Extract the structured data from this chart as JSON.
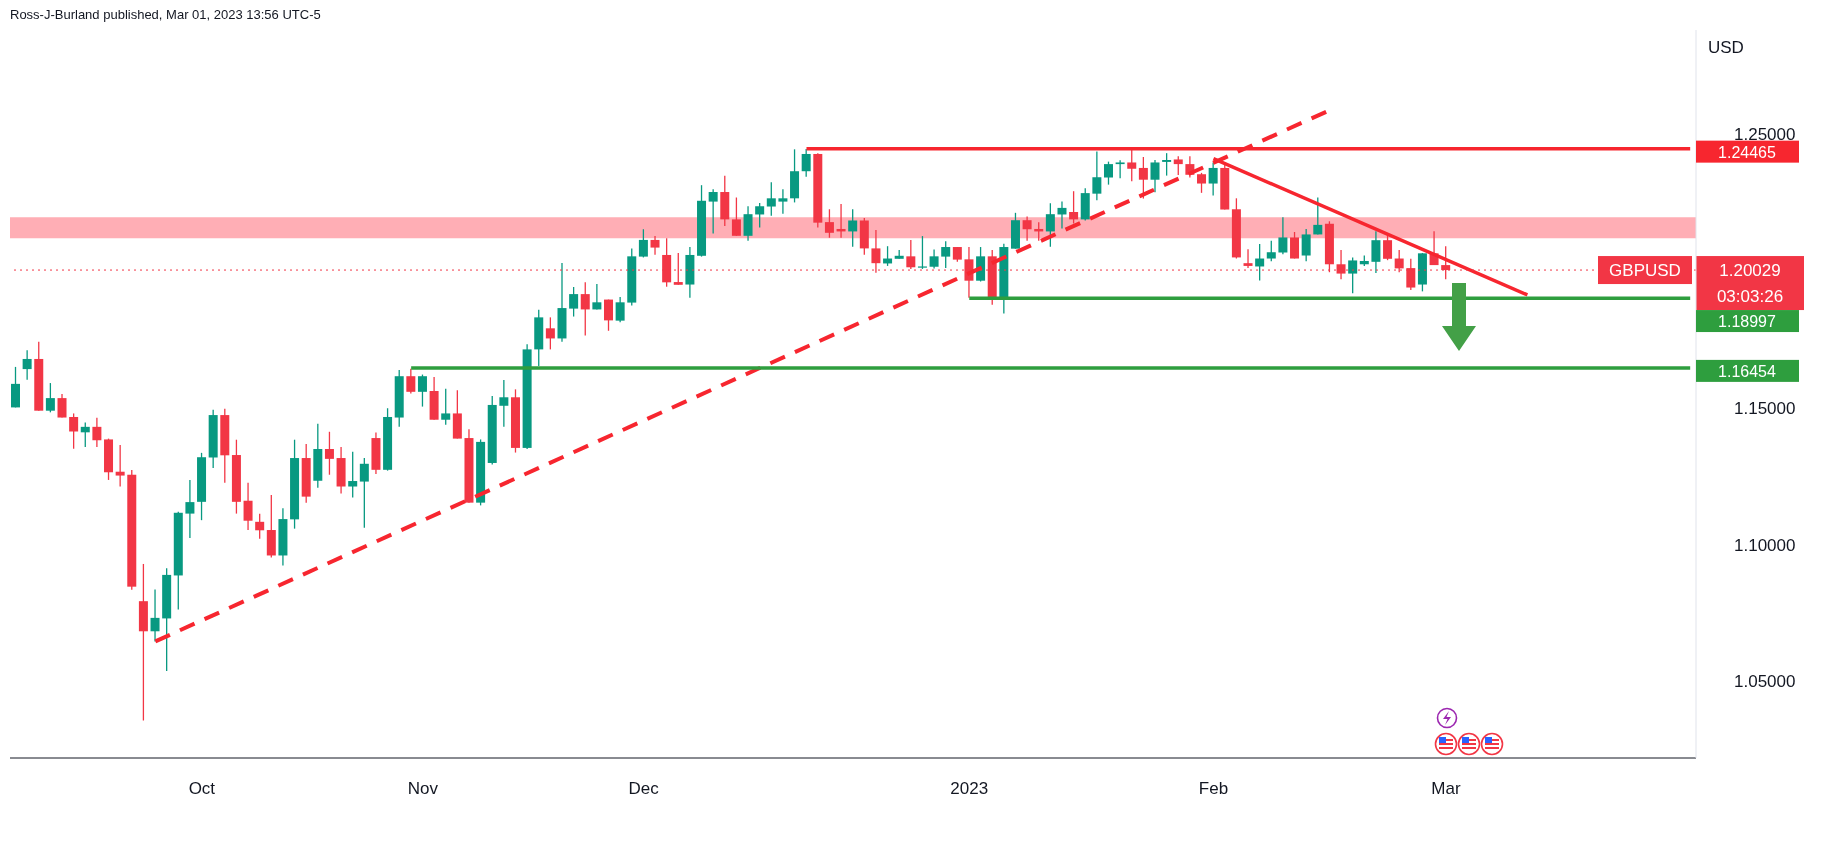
{
  "chart_data": {
    "type": "candlestick",
    "title": "Ross-J-Burland published, Mar 01, 2023 13:56 UTC-5",
    "ylabel": "USD",
    "categories": [
      null,
      null,
      null,
      null,
      null,
      null,
      null,
      null,
      null,
      null,
      null,
      null,
      null,
      null,
      null,
      null,
      "Oct",
      null,
      null,
      null,
      null,
      null,
      null,
      null,
      null,
      null,
      null,
      null,
      null,
      null,
      null,
      null,
      null,
      null,
      null,
      "Nov",
      null,
      null,
      null,
      null,
      null,
      null,
      null,
      null,
      null,
      null,
      null,
      null,
      null,
      null,
      null,
      null,
      null,
      null,
      "Dec",
      null,
      null,
      null,
      null,
      null,
      null,
      null,
      null,
      null,
      null,
      null,
      null,
      null,
      null,
      null,
      null,
      null,
      null,
      null,
      null,
      null,
      null,
      null,
      null,
      null,
      null,
      null,
      "2023",
      null,
      null,
      null,
      null,
      null,
      null,
      null,
      null,
      null,
      null,
      null,
      null,
      null,
      null,
      null,
      null,
      null,
      null,
      null,
      null,
      "Feb",
      null,
      null,
      null,
      null,
      null,
      null,
      null,
      null,
      null,
      null,
      null,
      null,
      null,
      null,
      null,
      null,
      null,
      null,
      null,
      "Mar",
      null,
      null,
      null,
      null,
      null,
      null,
      null,
      null,
      null,
      null,
      null,
      null,
      null,
      null,
      null,
      null,
      null,
      null,
      null,
      null,
      null
    ],
    "ohlc": [
      [
        1.1501,
        1.1649,
        1.1501,
        1.1587
      ],
      [
        1.1641,
        1.171,
        1.1602,
        1.1678
      ],
      [
        1.1678,
        1.1741,
        1.1489,
        1.1489
      ],
      [
        1.1489,
        1.159,
        1.1483,
        1.1535
      ],
      [
        1.1535,
        1.155,
        1.1464,
        1.1464
      ],
      [
        1.1466,
        1.1479,
        1.135,
        1.1413
      ],
      [
        1.141,
        1.1446,
        1.1356,
        1.143
      ],
      [
        1.143,
        1.1463,
        1.1356,
        1.1381
      ],
      [
        1.1384,
        1.1387,
        1.1236,
        1.1264
      ],
      [
        1.1266,
        1.1364,
        1.1212,
        1.1252
      ],
      [
        1.1255,
        1.1272,
        1.0835,
        1.0846
      ],
      [
        1.0793,
        1.0929,
        1.0357,
        1.0683
      ],
      [
        1.0683,
        1.0836,
        1.0646,
        1.0732
      ],
      [
        1.073,
        1.0913,
        1.0538,
        1.0889
      ],
      [
        1.0887,
        1.112,
        1.0763,
        1.1116
      ],
      [
        1.1113,
        1.1236,
        1.1024,
        1.1155
      ],
      [
        1.1156,
        1.1335,
        1.1089,
        1.1319
      ],
      [
        1.1318,
        1.1492,
        1.128,
        1.1473
      ],
      [
        1.1473,
        1.1496,
        1.1226,
        1.1326
      ],
      [
        1.1327,
        1.1383,
        1.1113,
        1.1156
      ],
      [
        1.116,
        1.1226,
        1.1053,
        1.1087
      ],
      [
        1.1083,
        1.1112,
        1.1021,
        1.1052
      ],
      [
        1.1053,
        1.1181,
        1.0953,
        1.096
      ],
      [
        1.096,
        1.1133,
        1.0923,
        1.1093
      ],
      [
        1.1092,
        1.1383,
        1.1058,
        1.1316
      ],
      [
        1.1316,
        1.1367,
        1.1153,
        1.1175
      ],
      [
        1.1233,
        1.1441,
        1.1207,
        1.1349
      ],
      [
        1.1349,
        1.1412,
        1.1255,
        1.1313
      ],
      [
        1.1316,
        1.1356,
        1.1186,
        1.1212
      ],
      [
        1.1212,
        1.1339,
        1.1172,
        1.1232
      ],
      [
        1.123,
        1.1316,
        1.1061,
        1.1295
      ],
      [
        1.1389,
        1.1409,
        1.1258,
        1.1273
      ],
      [
        1.1273,
        1.1498,
        1.127,
        1.1466
      ],
      [
        1.1464,
        1.1638,
        1.143,
        1.1615
      ],
      [
        1.1615,
        1.1642,
        1.1552,
        1.1558
      ],
      [
        1.1558,
        1.1621,
        1.1504,
        1.1615
      ],
      [
        1.1561,
        1.1612,
        1.1456,
        1.1456
      ],
      [
        1.1456,
        1.1569,
        1.1438,
        1.1479
      ],
      [
        1.1479,
        1.1564,
        1.1387,
        1.1387
      ],
      [
        1.1389,
        1.1421,
        1.1153,
        1.1153
      ],
      [
        1.1153,
        1.1384,
        1.1143,
        1.1375
      ],
      [
        1.1298,
        1.1543,
        1.1292,
        1.151
      ],
      [
        1.1507,
        1.1601,
        1.143,
        1.1538
      ],
      [
        1.1538,
        1.1567,
        1.1336,
        1.1353
      ],
      [
        1.1353,
        1.1732,
        1.1349,
        1.1713
      ],
      [
        1.1713,
        1.1858,
        1.1652,
        1.183
      ],
      [
        1.179,
        1.183,
        1.1713,
        1.1753
      ],
      [
        1.1753,
        1.2029,
        1.1741,
        1.1864
      ],
      [
        1.1862,
        1.1941,
        1.1833,
        1.1915
      ],
      [
        1.1915,
        1.1958,
        1.1764,
        1.1859
      ],
      [
        1.1859,
        1.1952,
        1.1859,
        1.1885
      ],
      [
        1.1895,
        1.1895,
        1.1781,
        1.1819
      ],
      [
        1.1818,
        1.1904,
        1.1812,
        1.1885
      ],
      [
        1.1884,
        1.2082,
        1.1873,
        1.2053
      ],
      [
        1.2052,
        1.2152,
        1.2049,
        1.2113
      ],
      [
        1.2113,
        1.2127,
        1.2059,
        1.2085
      ],
      [
        1.2058,
        1.2119,
        1.1942,
        1.1958
      ],
      [
        1.1959,
        1.2065,
        1.1949,
        1.1949
      ],
      [
        1.195,
        1.2087,
        1.1902,
        1.2058
      ],
      [
        1.2055,
        1.2313,
        1.2052,
        1.2256
      ],
      [
        1.2253,
        1.2298,
        1.2136,
        1.2288
      ],
      [
        1.2288,
        1.2347,
        1.2164,
        1.2188
      ],
      [
        1.2188,
        1.2268,
        1.2128,
        1.2128
      ],
      [
        1.2128,
        1.2236,
        1.211,
        1.2207
      ],
      [
        1.2206,
        1.2248,
        1.2158,
        1.2236
      ],
      [
        1.2235,
        1.2324,
        1.2201,
        1.2265
      ],
      [
        1.2253,
        1.2298,
        1.2209,
        1.2265
      ],
      [
        1.2265,
        1.2444,
        1.225,
        1.2364
      ],
      [
        1.2364,
        1.2445,
        1.2344,
        1.2427
      ],
      [
        1.2427,
        1.243,
        1.2158,
        1.2176
      ],
      [
        1.2178,
        1.2225,
        1.2121,
        1.2139
      ],
      [
        1.2153,
        1.2244,
        1.2121,
        1.2144
      ],
      [
        1.2144,
        1.2225,
        1.2088,
        1.2184
      ],
      [
        1.2184,
        1.2193,
        1.2059,
        1.2082
      ],
      [
        1.2082,
        1.2149,
        1.1993,
        1.2028
      ],
      [
        1.2027,
        1.209,
        1.2018,
        1.2045
      ],
      [
        1.2044,
        1.2076,
        1.2044,
        1.2055
      ],
      [
        1.2053,
        1.2113,
        1.2007,
        1.2013
      ],
      [
        1.2012,
        1.2127,
        1.2007,
        1.2016
      ],
      [
        1.2015,
        1.2078,
        1.2009,
        1.2053
      ],
      [
        1.2052,
        1.2108,
        1.201,
        1.2087
      ],
      [
        1.2087,
        1.2087,
        1.2033,
        1.2041
      ],
      [
        1.2042,
        1.2087,
        1.1902,
        1.1964
      ],
      [
        1.1964,
        1.2087,
        1.1961,
        1.2053
      ],
      [
        1.2053,
        1.2076,
        1.1876,
        1.1901
      ],
      [
        1.1904,
        1.2099,
        1.1844,
        1.2087
      ],
      [
        1.2081,
        1.2212,
        1.2081,
        1.2185
      ],
      [
        1.2185,
        1.2199,
        1.211,
        1.2152
      ],
      [
        1.2153,
        1.2178,
        1.211,
        1.2144
      ],
      [
        1.2144,
        1.2247,
        1.2088,
        1.2207
      ],
      [
        1.2206,
        1.2253,
        1.2155,
        1.223
      ],
      [
        1.2215,
        1.2291,
        1.2173,
        1.2188
      ],
      [
        1.2188,
        1.2302,
        1.2184,
        1.2284
      ],
      [
        1.2282,
        1.2436,
        1.2258,
        1.2342
      ],
      [
        1.2341,
        1.2399,
        1.2315,
        1.239
      ],
      [
        1.239,
        1.2404,
        1.2338,
        1.2396
      ],
      [
        1.2396,
        1.2445,
        1.2327,
        1.2373
      ],
      [
        1.2376,
        1.2416,
        1.2264,
        1.2333
      ],
      [
        1.2333,
        1.2405,
        1.2287,
        1.2396
      ],
      [
        1.2398,
        1.243,
        1.2348,
        1.2405
      ],
      [
        1.2407,
        1.2419,
        1.235,
        1.239
      ],
      [
        1.239,
        1.2419,
        1.2341,
        1.2351
      ],
      [
        1.2353,
        1.2358,
        1.2285,
        1.2319
      ],
      [
        1.2319,
        1.2396,
        1.2275,
        1.2376
      ],
      [
        1.2376,
        1.2396,
        1.2224,
        1.2224
      ],
      [
        1.2225,
        1.2265,
        1.2045,
        1.2049
      ],
      [
        1.2028,
        1.2079,
        1.201,
        1.2018
      ],
      [
        1.2016,
        1.2098,
        1.1965,
        1.2045
      ],
      [
        1.2045,
        1.211,
        1.2035,
        1.2068
      ],
      [
        1.2067,
        1.2196,
        1.2061,
        1.2122
      ],
      [
        1.2122,
        1.2142,
        1.2045,
        1.2045
      ],
      [
        1.2056,
        1.2153,
        1.2035,
        1.2133
      ],
      [
        1.2133,
        1.2268,
        1.2133,
        1.2168
      ],
      [
        1.2172,
        1.2181,
        1.1995,
        1.2024
      ],
      [
        1.2024,
        1.2076,
        1.1969,
        1.199
      ],
      [
        1.199,
        1.2049,
        1.1918,
        1.2038
      ],
      [
        1.2024,
        1.2056,
        1.2018,
        1.2036
      ],
      [
        1.2033,
        1.2145,
        1.1992,
        1.2112
      ],
      [
        1.2112,
        1.2136,
        1.2039,
        1.2044
      ],
      [
        1.2045,
        1.2076,
        1.1995,
        1.2009
      ],
      [
        1.201,
        1.2044,
        1.193,
        1.1939
      ],
      [
        1.195,
        1.2065,
        1.1925,
        1.2064
      ],
      [
        1.2064,
        1.2145,
        1.2021,
        1.2021
      ],
      [
        1.2021,
        1.209,
        1.1969,
        1.20029
      ],
      null,
      null,
      null,
      null,
      null,
      null,
      null,
      null,
      null,
      null,
      null,
      null,
      null,
      null,
      null,
      null,
      null,
      null,
      null,
      null,
      null
    ],
    "series": [
      {
        "type": "line",
        "color": "#f7262f",
        "line_style": "dashed",
        "values": [
          null,
          null,
          null,
          null,
          null,
          null,
          null,
          null,
          null,
          null,
          null,
          null,
          1.0646,
          null,
          null,
          null,
          null,
          null,
          null,
          null,
          null,
          null,
          null,
          null,
          null,
          null,
          null,
          null,
          null,
          null,
          null,
          null,
          null,
          null,
          null,
          null,
          null,
          null,
          null,
          null,
          null,
          null,
          null,
          null,
          null,
          null,
          null,
          null,
          null,
          null,
          null,
          null,
          null,
          null,
          null,
          null,
          null,
          null,
          null,
          null,
          null,
          null,
          null,
          null,
          null,
          null,
          null,
          null,
          null,
          null,
          null,
          null,
          null,
          null,
          null,
          null,
          null,
          null,
          null,
          null,
          null,
          null,
          null,
          null,
          null,
          null,
          null,
          null,
          null,
          null,
          null,
          null,
          null,
          null,
          null,
          null,
          null,
          null,
          null,
          null,
          null,
          null,
          null,
          null,
          null,
          null,
          null,
          null,
          null,
          null,
          null,
          null,
          null,
          1.2587,
          null,
          null,
          null,
          null,
          null,
          null,
          null,
          null,
          null,
          null,
          null,
          null,
          null,
          null,
          null,
          null,
          null,
          null,
          null,
          null,
          null,
          null,
          null,
          null,
          null,
          null,
          null,
          null,
          null,
          null,
          null
        ]
      },
      {
        "type": "line",
        "color": "#f7262f",
        "line_style": "solid",
        "values": [
          null,
          null,
          null,
          null,
          null,
          null,
          null,
          null,
          null,
          null,
          null,
          null,
          null,
          null,
          null,
          null,
          null,
          null,
          null,
          null,
          null,
          null,
          null,
          null,
          null,
          null,
          null,
          null,
          null,
          null,
          null,
          null,
          null,
          null,
          null,
          null,
          null,
          null,
          null,
          null,
          null,
          null,
          null,
          null,
          null,
          null,
          null,
          null,
          null,
          null,
          null,
          null,
          null,
          null,
          null,
          null,
          null,
          null,
          null,
          null,
          null,
          null,
          null,
          null,
          null,
          null,
          null,
          null,
          null,
          null,
          null,
          null,
          null,
          null,
          null,
          null,
          null,
          null,
          null,
          null,
          null,
          null,
          null,
          null,
          null,
          null,
          null,
          null,
          null,
          null,
          null,
          null,
          null,
          null,
          null,
          null,
          null,
          null,
          null,
          null,
          null,
          null,
          null,
          1.241,
          null,
          null,
          null,
          null,
          null,
          null,
          null,
          null,
          null,
          null,
          null,
          null,
          null,
          null,
          null,
          null,
          null,
          null,
          null,
          null,
          null,
          null,
          null,
          null,
          null,
          null,
          1.1912,
          null,
          null,
          null,
          null,
          null,
          null,
          null,
          null,
          null,
          null,
          null,
          null,
          null,
          null
        ]
      },
      {
        "type": "line",
        "color": "#f7262f",
        "line_style": "solid",
        "values": [
          null,
          null,
          null,
          null,
          null,
          null,
          null,
          null,
          null,
          null,
          null,
          null,
          null,
          null,
          null,
          null,
          null,
          null,
          null,
          null,
          null,
          null,
          null,
          null,
          null,
          null,
          null,
          null,
          null,
          null,
          null,
          null,
          null,
          null,
          null,
          null,
          null,
          null,
          null,
          null,
          null,
          null,
          null,
          null,
          null,
          null,
          null,
          null,
          null,
          null,
          null,
          null,
          null,
          null,
          null,
          null,
          null,
          null,
          null,
          null,
          null,
          null,
          null,
          null,
          null,
          null,
          null,
          null,
          1.24465,
          null,
          null,
          null,
          null,
          null,
          null,
          null,
          null,
          null,
          null,
          null,
          null,
          null,
          null,
          null,
          null,
          null,
          null,
          null,
          null,
          null,
          null,
          null,
          null,
          null,
          null,
          null,
          null,
          null,
          null,
          null,
          null,
          null,
          null,
          null,
          null,
          null,
          null,
          null,
          null,
          null,
          null,
          null,
          null,
          null,
          null,
          null,
          null,
          null,
          null,
          null,
          null,
          null,
          null,
          null,
          null,
          null,
          null,
          null,
          null,
          null,
          null,
          null,
          null,
          null,
          null,
          null,
          null,
          null,
          null,
          null,
          null,
          null,
          null,
          null,
          1.24465
        ],
        "value_labels": [
          null,
          null,
          null,
          null,
          null,
          null,
          null,
          null,
          null,
          null,
          null,
          null,
          null,
          null,
          null,
          null,
          null,
          null,
          null,
          null,
          null,
          null,
          null,
          null,
          null,
          null,
          null,
          null,
          null,
          null,
          null,
          null,
          null,
          null,
          null,
          null,
          null,
          null,
          null,
          null,
          null,
          null,
          null,
          null,
          null,
          null,
          null,
          null,
          null,
          null,
          null,
          null,
          null,
          null,
          null,
          null,
          null,
          null,
          null,
          null,
          null,
          null,
          null,
          null,
          null,
          null,
          null,
          null,
          null,
          null,
          null,
          null,
          null,
          null,
          null,
          null,
          null,
          null,
          null,
          null,
          null,
          null,
          null,
          null,
          null,
          null,
          null,
          null,
          null,
          null,
          null,
          null,
          null,
          null,
          null,
          null,
          null,
          null,
          null,
          null,
          null,
          null,
          null,
          null,
          null,
          null,
          null,
          null,
          null,
          null,
          null,
          null,
          null,
          null,
          null,
          null,
          null,
          null,
          null,
          null,
          null,
          null,
          null,
          null,
          null,
          null,
          null,
          null,
          null,
          null,
          null,
          null,
          null,
          null,
          null,
          null,
          null,
          null,
          null,
          null,
          null,
          null,
          null,
          null,
          "1.24465"
        ]
      },
      {
        "type": "line",
        "color": "#2e9e3e",
        "line_style": "solid",
        "values": [
          null,
          null,
          null,
          null,
          null,
          null,
          null,
          null,
          null,
          null,
          null,
          null,
          null,
          null,
          null,
          null,
          null,
          null,
          null,
          null,
          null,
          null,
          null,
          null,
          null,
          null,
          null,
          null,
          null,
          null,
          null,
          null,
          null,
          null,
          null,
          null,
          null,
          null,
          null,
          null,
          null,
          null,
          null,
          null,
          null,
          null,
          null,
          null,
          null,
          null,
          null,
          null,
          null,
          null,
          null,
          null,
          null,
          null,
          null,
          null,
          null,
          null,
          null,
          null,
          null,
          null,
          null,
          null,
          null,
          null,
          null,
          null,
          null,
          null,
          null,
          null,
          null,
          null,
          null,
          null,
          null,
          null,
          1.18997,
          null,
          null,
          null,
          null,
          null,
          null,
          null,
          null,
          null,
          null,
          null,
          null,
          null,
          null,
          null,
          null,
          null,
          null,
          null,
          null,
          null,
          null,
          null,
          null,
          null,
          null,
          null,
          null,
          null,
          null,
          null,
          null,
          null,
          null,
          null,
          null,
          null,
          null,
          null,
          null,
          null,
          null,
          null,
          null,
          null,
          null,
          null,
          null,
          null,
          null,
          null,
          null,
          null,
          null,
          null,
          null,
          null,
          null,
          null,
          null,
          null,
          1.18997
        ],
        "value_labels": [
          null,
          null,
          null,
          null,
          null,
          null,
          null,
          null,
          null,
          null,
          null,
          null,
          null,
          null,
          null,
          null,
          null,
          null,
          null,
          null,
          null,
          null,
          null,
          null,
          null,
          null,
          null,
          null,
          null,
          null,
          null,
          null,
          null,
          null,
          null,
          null,
          null,
          null,
          null,
          null,
          null,
          null,
          null,
          null,
          null,
          null,
          null,
          null,
          null,
          null,
          null,
          null,
          null,
          null,
          null,
          null,
          null,
          null,
          null,
          null,
          null,
          null,
          null,
          null,
          null,
          null,
          null,
          null,
          null,
          null,
          null,
          null,
          null,
          null,
          null,
          null,
          null,
          null,
          null,
          null,
          null,
          null,
          null,
          null,
          null,
          null,
          null,
          null,
          null,
          null,
          null,
          null,
          null,
          null,
          null,
          null,
          null,
          null,
          null,
          null,
          null,
          null,
          null,
          null,
          null,
          null,
          null,
          null,
          null,
          null,
          null,
          null,
          null,
          null,
          null,
          null,
          null,
          null,
          null,
          null,
          null,
          null,
          null,
          null,
          null,
          null,
          null,
          null,
          null,
          null,
          null,
          null,
          null,
          null,
          null,
          null,
          null,
          null,
          null,
          null,
          null,
          null,
          null,
          null,
          "1.18997"
        ]
      },
      {
        "type": "line",
        "color": "#2e9e3e",
        "line_style": "solid",
        "values": [
          null,
          null,
          null,
          null,
          null,
          null,
          null,
          null,
          null,
          null,
          null,
          null,
          null,
          null,
          null,
          null,
          null,
          null,
          null,
          null,
          null,
          null,
          null,
          null,
          null,
          null,
          null,
          null,
          null,
          null,
          null,
          null,
          null,
          null,
          1.16454,
          null,
          null,
          null,
          null,
          null,
          null,
          null,
          null,
          null,
          null,
          null,
          null,
          null,
          null,
          null,
          null,
          null,
          null,
          null,
          null,
          null,
          null,
          null,
          null,
          null,
          null,
          null,
          null,
          null,
          null,
          null,
          null,
          null,
          null,
          null,
          null,
          null,
          null,
          null,
          null,
          null,
          null,
          null,
          null,
          null,
          null,
          null,
          null,
          null,
          null,
          null,
          null,
          null,
          null,
          null,
          null,
          null,
          null,
          null,
          null,
          null,
          null,
          null,
          null,
          null,
          null,
          null,
          null,
          null,
          null,
          null,
          null,
          null,
          null,
          null,
          null,
          null,
          null,
          null,
          null,
          null,
          null,
          null,
          null,
          null,
          null,
          null,
          null,
          null,
          null,
          null,
          null,
          null,
          null,
          null,
          null,
          null,
          null,
          null,
          null,
          null,
          null,
          null,
          null,
          null,
          null,
          null,
          null,
          null,
          1.16454
        ],
        "value_labels": [
          null,
          null,
          null,
          null,
          null,
          null,
          null,
          null,
          null,
          null,
          null,
          null,
          null,
          null,
          null,
          null,
          null,
          null,
          null,
          null,
          null,
          null,
          null,
          null,
          null,
          null,
          null,
          null,
          null,
          null,
          null,
          null,
          null,
          null,
          null,
          null,
          null,
          null,
          null,
          null,
          null,
          null,
          null,
          null,
          null,
          null,
          null,
          null,
          null,
          null,
          null,
          null,
          null,
          null,
          null,
          null,
          null,
          null,
          null,
          null,
          null,
          null,
          null,
          null,
          null,
          null,
          null,
          null,
          null,
          null,
          null,
          null,
          null,
          null,
          null,
          null,
          null,
          null,
          null,
          null,
          null,
          null,
          null,
          null,
          null,
          null,
          null,
          null,
          null,
          null,
          null,
          null,
          null,
          null,
          null,
          null,
          null,
          null,
          null,
          null,
          null,
          null,
          null,
          null,
          null,
          null,
          null,
          null,
          null,
          null,
          null,
          null,
          null,
          null,
          null,
          null,
          null,
          null,
          null,
          null,
          null,
          null,
          null,
          null,
          null,
          null,
          null,
          null,
          null,
          null,
          null,
          null,
          null,
          null,
          null,
          null,
          null,
          null,
          null,
          null,
          null,
          null,
          null,
          null,
          "1.16454"
        ]
      }
    ],
    "bands": [
      {
        "axis": "y",
        "from": 1.2119,
        "to": 1.2196,
        "color": "#ff6b78"
      }
    ],
    "ref_lines": [
      {
        "axis": "y",
        "value": 1.20029,
        "label": "GBPUSD",
        "color": "#f23645",
        "line_style": "dotted"
      }
    ],
    "annotations": [
      "1.20029",
      "03:03:26"
    ],
    "ylim": [
      1.022,
      1.288
    ],
    "yticks": [
      {
        "value": 1.05,
        "label": "1.05000"
      },
      {
        "value": 1.1,
        "label": "1.10000"
      },
      {
        "value": 1.15,
        "label": "1.15000"
      },
      {
        "value": 1.25,
        "label": "1.25000"
      }
    ]
  }
}
